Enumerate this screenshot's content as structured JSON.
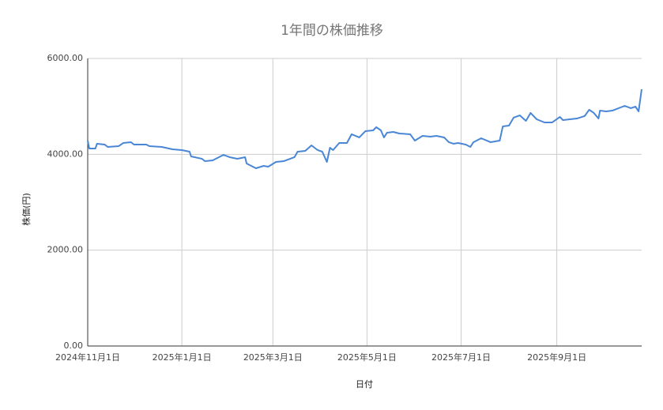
{
  "chart_data": {
    "type": "line",
    "title": "1年間の株価推移",
    "x_label": "日付",
    "y_label": "株価(円)",
    "color": "#4a86d6",
    "grid": true,
    "x": [
      "2024-11-01",
      "2024-11-02",
      "2024-11-06",
      "2024-11-07",
      "2024-11-12",
      "2024-11-14",
      "2024-11-21",
      "2024-11-24",
      "2024-11-29",
      "2024-12-01",
      "2024-12-09",
      "2024-12-11",
      "2024-12-19",
      "2024-12-26",
      "2025-01-01",
      "2025-01-06",
      "2025-01-07",
      "2025-01-14",
      "2025-01-16",
      "2025-01-21",
      "2025-01-28",
      "2025-02-01",
      "2025-02-06",
      "2025-02-11",
      "2025-02-12",
      "2025-02-18",
      "2025-02-23",
      "2025-02-26",
      "2025-03-03",
      "2025-03-08",
      "2025-03-15",
      "2025-03-17",
      "2025-03-22",
      "2025-03-26",
      "2025-03-30",
      "2025-04-02",
      "2025-04-05",
      "2025-04-07",
      "2025-04-09",
      "2025-04-13",
      "2025-04-18",
      "2025-04-21",
      "2025-04-26",
      "2025-04-29",
      "2025-04-30",
      "2025-05-05",
      "2025-05-07",
      "2025-05-10",
      "2025-05-12",
      "2025-05-14",
      "2025-05-18",
      "2025-05-22",
      "2025-05-29",
      "2025-06-01",
      "2025-06-06",
      "2025-06-11",
      "2025-06-15",
      "2025-06-20",
      "2025-06-23",
      "2025-06-26",
      "2025-06-29",
      "2025-07-04",
      "2025-07-07",
      "2025-07-09",
      "2025-07-14",
      "2025-07-20",
      "2025-07-26",
      "2025-07-28",
      "2025-08-01",
      "2025-08-04",
      "2025-08-08",
      "2025-08-12",
      "2025-08-15",
      "2025-08-19",
      "2025-08-24",
      "2025-08-29",
      "2025-09-03",
      "2025-09-05",
      "2025-09-14",
      "2025-09-19",
      "2025-09-22",
      "2025-09-25",
      "2025-09-28",
      "2025-09-29",
      "2025-10-03",
      "2025-10-07",
      "2025-10-15",
      "2025-10-19",
      "2025-10-22",
      "2025-10-24",
      "2025-10-26"
    ],
    "values": [
      4286,
      4121,
      4121,
      4220,
      4203,
      4154,
      4170,
      4236,
      4253,
      4203,
      4203,
      4170,
      4154,
      4104,
      4088,
      4055,
      3956,
      3907,
      3857,
      3874,
      3989,
      3940,
      3907,
      3940,
      3808,
      3709,
      3758,
      3742,
      3841,
      3857,
      3940,
      4055,
      4071,
      4187,
      4088,
      4055,
      3841,
      4137,
      4088,
      4236,
      4236,
      4418,
      4352,
      4451,
      4484,
      4500,
      4566,
      4500,
      4352,
      4451,
      4467,
      4434,
      4418,
      4286,
      4385,
      4368,
      4385,
      4352,
      4253,
      4220,
      4236,
      4203,
      4154,
      4253,
      4335,
      4253,
      4286,
      4582,
      4599,
      4764,
      4813,
      4698,
      4863,
      4731,
      4665,
      4665,
      4780,
      4714,
      4747,
      4797,
      4929,
      4863,
      4747,
      4912,
      4896,
      4912,
      5011,
      4962,
      4995,
      4896,
      5357
    ],
    "xlim": [
      "2024-11-01",
      "2025-10-26"
    ],
    "xticks": [
      {
        "value": "2024-11-01",
        "label": "2024年11月1日"
      },
      {
        "value": "2025-01-01",
        "label": "2025年1月1日"
      },
      {
        "value": "2025-03-01",
        "label": "2025年3月1日"
      },
      {
        "value": "2025-05-01",
        "label": "2025年5月1日"
      },
      {
        "value": "2025-07-01",
        "label": "2025年7月1日"
      },
      {
        "value": "2025-09-01",
        "label": "2025年9月1日"
      }
    ],
    "ylim": [
      0,
      6000
    ],
    "yticks": [
      {
        "value": 0,
        "label": "0.00"
      },
      {
        "value": 2000,
        "label": "2000.00"
      },
      {
        "value": 4000,
        "label": "4000.00"
      },
      {
        "value": 6000,
        "label": "6000.00"
      }
    ]
  }
}
